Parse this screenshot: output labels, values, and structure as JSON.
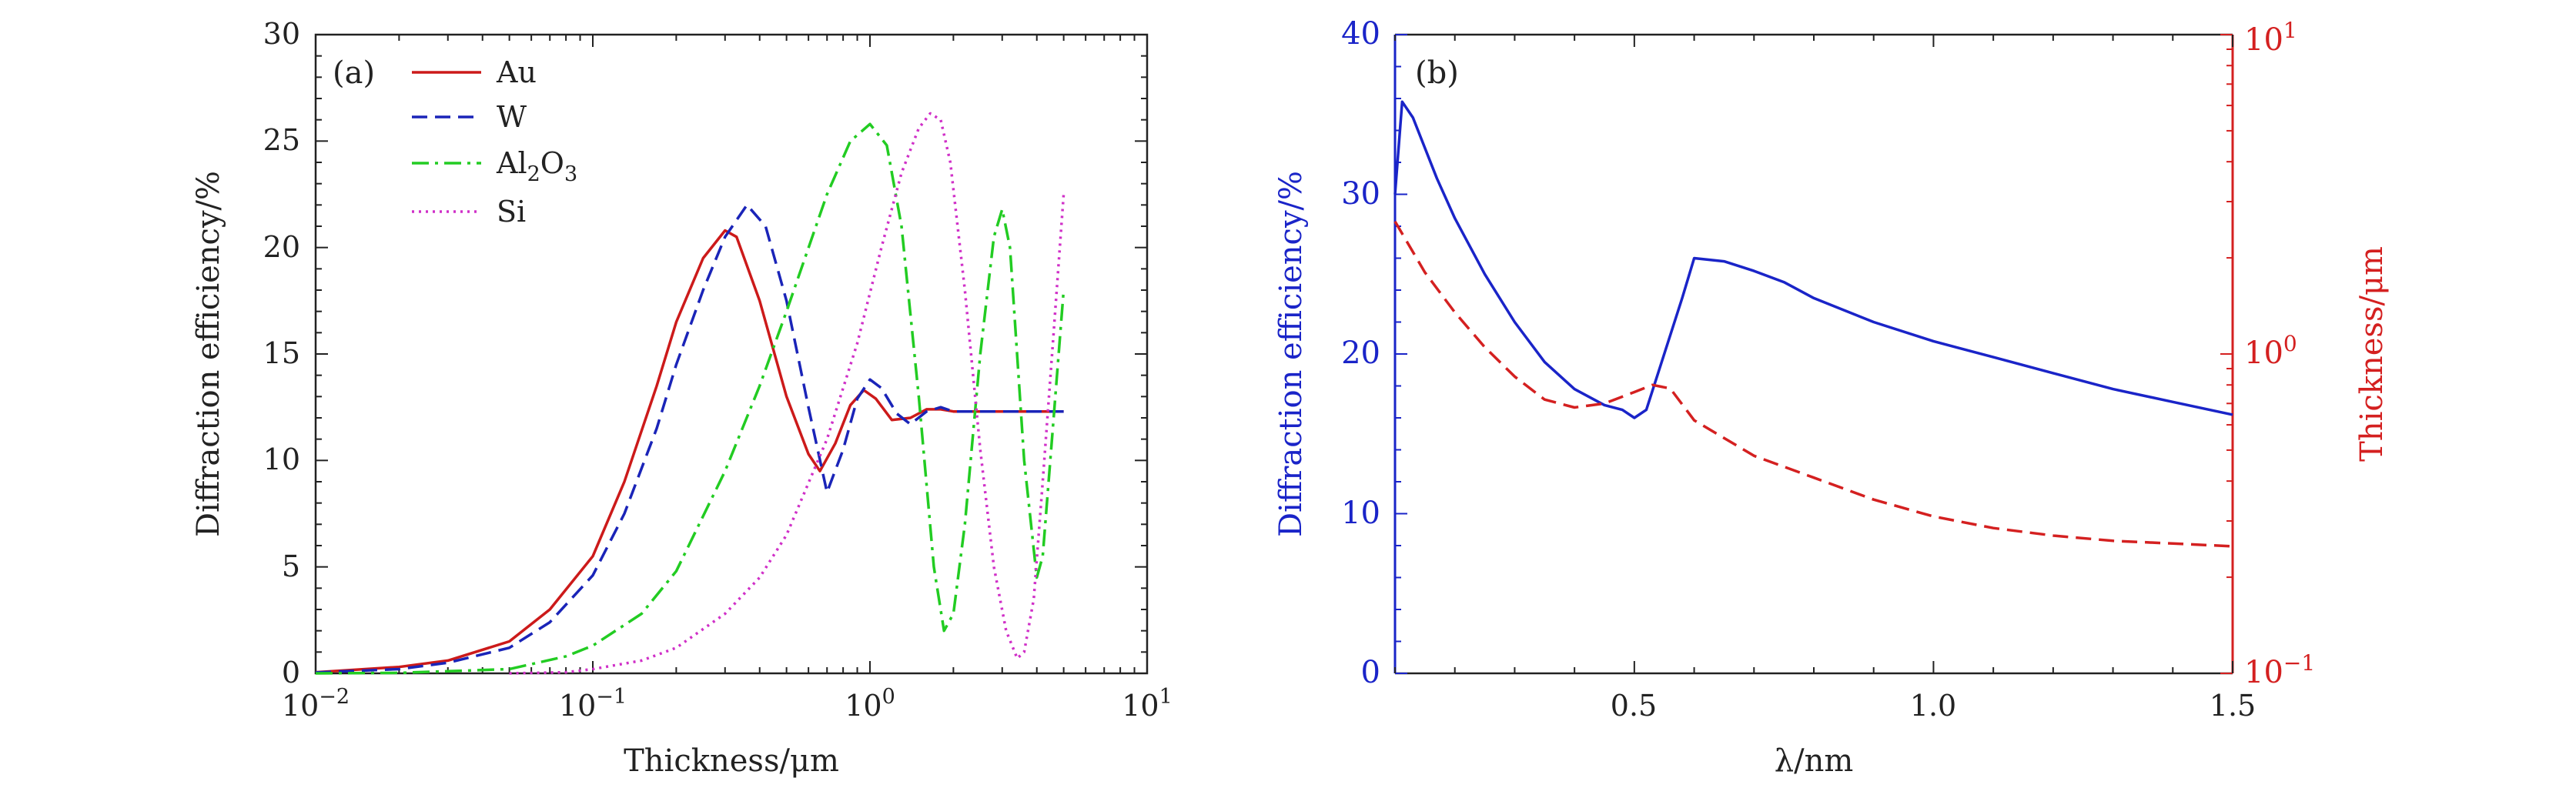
{
  "colors": {
    "axis": "#222222",
    "au": "#cc1a1a",
    "w": "#1a24b8",
    "al2o3": "#22cc22",
    "si": "#d030c8",
    "eff": "#1a24c8",
    "thick": "#d42020"
  },
  "chart_data": [
    {
      "type": "line",
      "panel_label": "(a)",
      "xscale": "log",
      "xlabel": "Thickness/μm",
      "ylabel": "Diffraction efficiency/%",
      "xlim": [
        0.01,
        10
      ],
      "ylim": [
        0,
        30
      ],
      "xticks": [
        {
          "base": "10",
          "exp": "−2",
          "value": 0.01
        },
        {
          "base": "10",
          "exp": "−1",
          "value": 0.1
        },
        {
          "base": "10",
          "exp": "0",
          "value": 1
        },
        {
          "base": "10",
          "exp": "1",
          "value": 10
        }
      ],
      "yticks": [
        "0",
        "5",
        "10",
        "15",
        "20",
        "25",
        "30"
      ],
      "legend": {
        "placement": "top-left",
        "au": "Au",
        "w": "W",
        "al_main": "Al",
        "al_sub1": "2",
        "al_o": "O",
        "al_sub2": "3",
        "si": "Si"
      },
      "series": [
        {
          "name": "Au",
          "style": "solid",
          "x": [
            0.01,
            0.02,
            0.03,
            0.05,
            0.07,
            0.1,
            0.13,
            0.17,
            0.2,
            0.25,
            0.3,
            0.33,
            0.4,
            0.5,
            0.6,
            0.66,
            0.75,
            0.85,
            0.95,
            1.05,
            1.2,
            1.4,
            1.6,
            1.8,
            2.0,
            2.5,
            3.0,
            4.0,
            5.0
          ],
          "y": [
            0.05,
            0.3,
            0.6,
            1.5,
            3.0,
            5.5,
            9.0,
            13.5,
            16.5,
            19.5,
            20.8,
            20.5,
            17.5,
            13.0,
            10.3,
            9.5,
            10.8,
            12.6,
            13.3,
            12.9,
            11.9,
            12.0,
            12.4,
            12.4,
            12.3,
            12.3,
            12.3,
            12.3,
            12.3
          ]
        },
        {
          "name": "W",
          "style": "dashed",
          "x": [
            0.01,
            0.02,
            0.03,
            0.05,
            0.07,
            0.1,
            0.13,
            0.17,
            0.2,
            0.25,
            0.3,
            0.36,
            0.42,
            0.5,
            0.6,
            0.7,
            0.8,
            0.9,
            1.0,
            1.1,
            1.25,
            1.4,
            1.6,
            1.8,
            2.0,
            2.5,
            3.0,
            4.0,
            5.0
          ],
          "y": [
            0.04,
            0.2,
            0.5,
            1.2,
            2.4,
            4.6,
            7.5,
            11.5,
            14.5,
            18.0,
            20.5,
            22.0,
            21.0,
            17.5,
            12.5,
            8.5,
            10.5,
            12.9,
            13.8,
            13.4,
            12.2,
            11.7,
            12.3,
            12.5,
            12.3,
            12.3,
            12.3,
            12.3,
            12.3
          ]
        },
        {
          "name": "Al2O3",
          "style": "dashdot",
          "x": [
            0.01,
            0.02,
            0.05,
            0.08,
            0.1,
            0.15,
            0.2,
            0.3,
            0.4,
            0.5,
            0.7,
            0.85,
            1.0,
            1.15,
            1.3,
            1.5,
            1.7,
            1.85,
            2.0,
            2.2,
            2.5,
            2.8,
            3.0,
            3.2,
            3.6,
            4.0,
            4.2,
            4.6,
            5.0
          ],
          "y": [
            0,
            0.02,
            0.2,
            0.8,
            1.3,
            2.8,
            4.8,
            9.5,
            13.5,
            17.0,
            22.5,
            25.0,
            25.8,
            24.8,
            21.0,
            13.0,
            5.0,
            2.0,
            2.8,
            7.0,
            15.0,
            20.5,
            21.8,
            20.0,
            10.0,
            4.5,
            5.5,
            12.0,
            18.0
          ]
        },
        {
          "name": "Si",
          "style": "dotted",
          "x": [
            0.05,
            0.08,
            0.1,
            0.15,
            0.2,
            0.3,
            0.4,
            0.5,
            0.7,
            0.9,
            1.1,
            1.3,
            1.5,
            1.65,
            1.8,
            1.95,
            2.2,
            2.5,
            2.8,
            3.1,
            3.4,
            3.6,
            3.9,
            4.2,
            4.6,
            5.0
          ],
          "y": [
            0,
            0.05,
            0.2,
            0.6,
            1.2,
            2.8,
            4.5,
            6.5,
            11.0,
            15.5,
            20.0,
            23.5,
            25.6,
            26.3,
            26.0,
            24.0,
            18.0,
            10.5,
            5.0,
            2.0,
            0.7,
            1.0,
            3.5,
            9.0,
            16.0,
            22.5
          ]
        }
      ]
    },
    {
      "type": "line",
      "panel_label": "(b)",
      "xlabel": "λ/nm",
      "ylabel_left": "Diffraction efficiency/%",
      "ylabel_right": "Thickness/μm",
      "xlim": [
        0.1,
        1.5
      ],
      "ylim_left": [
        0,
        40
      ],
      "ylim_right": [
        0.1,
        10
      ],
      "yscale_right": "log",
      "xticks": [
        "0.5",
        "1.0",
        "1.5"
      ],
      "yticks_left": [
        "0",
        "10",
        "20",
        "30",
        "40"
      ],
      "yticks_right": [
        {
          "base": "10",
          "exp": "−1",
          "value": 0.1
        },
        {
          "base": "10",
          "exp": "0",
          "value": 1
        },
        {
          "base": "10",
          "exp": "1",
          "value": 10
        }
      ],
      "series": [
        {
          "name": "Diffraction efficiency",
          "axis": "left",
          "style": "solid",
          "x": [
            0.1,
            0.112,
            0.13,
            0.17,
            0.2,
            0.25,
            0.3,
            0.35,
            0.4,
            0.45,
            0.48,
            0.5,
            0.52,
            0.55,
            0.58,
            0.6,
            0.65,
            0.7,
            0.75,
            0.8,
            0.9,
            1.0,
            1.1,
            1.2,
            1.3,
            1.4,
            1.5
          ],
          "y": [
            30,
            35.8,
            34.8,
            31.0,
            28.5,
            25.0,
            22.0,
            19.5,
            17.8,
            16.8,
            16.5,
            16.0,
            16.5,
            20.0,
            23.5,
            26.0,
            25.8,
            25.2,
            24.5,
            23.5,
            22.0,
            20.8,
            19.8,
            18.8,
            17.8,
            17.0,
            16.2
          ]
        },
        {
          "name": "Thickness",
          "axis": "right",
          "style": "dashed",
          "x": [
            0.1,
            0.15,
            0.2,
            0.25,
            0.3,
            0.35,
            0.4,
            0.45,
            0.5,
            0.53,
            0.56,
            0.6,
            0.7,
            0.8,
            0.9,
            1.0,
            1.1,
            1.2,
            1.3,
            1.4,
            1.5
          ],
          "y": [
            2.6,
            1.8,
            1.35,
            1.05,
            0.85,
            0.72,
            0.68,
            0.7,
            0.76,
            0.8,
            0.78,
            0.62,
            0.48,
            0.41,
            0.35,
            0.31,
            0.285,
            0.27,
            0.26,
            0.255,
            0.25
          ]
        }
      ]
    }
  ]
}
